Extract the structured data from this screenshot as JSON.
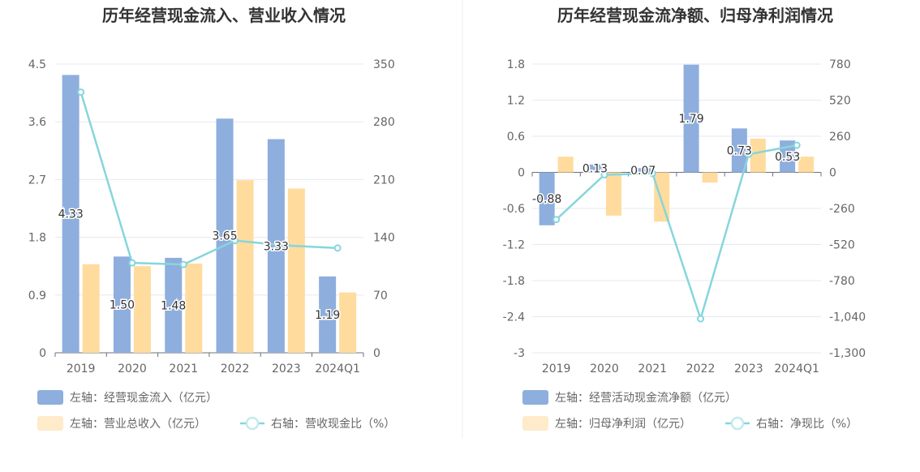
{
  "chart_data": [
    {
      "type": "bar",
      "title": "历年经营现金流入、营业收入情况",
      "categories": [
        "2019",
        "2020",
        "2021",
        "2022",
        "2023",
        "2024Q1"
      ],
      "left_axis": {
        "ylim": [
          0,
          4.5
        ],
        "ticks": [
          "0",
          "0.9",
          "1.8",
          "2.7",
          "3.6",
          "4.5"
        ],
        "tick_values": [
          0,
          0.9,
          1.8,
          2.7,
          3.6,
          4.5
        ]
      },
      "right_axis": {
        "ylim": [
          0,
          350
        ],
        "ticks": [
          "0",
          "70",
          "140",
          "210",
          "280",
          "350"
        ],
        "tick_values": [
          0,
          70,
          140,
          210,
          280,
          350
        ]
      },
      "series": [
        {
          "name": "左轴：经营现金流入（亿元）",
          "type": "bar",
          "axis": "left",
          "color": "#8eaedd",
          "values": [
            4.33,
            1.5,
            1.48,
            3.65,
            3.33,
            1.19
          ],
          "labels": [
            "4.33",
            "1.50",
            "1.48",
            "3.65",
            "3.33",
            "1.19"
          ]
        },
        {
          "name": "左轴：营业总收入（亿元）",
          "type": "bar",
          "axis": "left",
          "color": "#ffdb9e",
          "values": [
            1.38,
            1.35,
            1.39,
            2.69,
            2.56,
            0.94
          ]
        },
        {
          "name": "右轴：营收现金比（%）",
          "type": "line",
          "axis": "right",
          "color": "#86d6dc",
          "values": [
            316,
            109,
            107,
            136,
            130,
            127
          ]
        }
      ]
    },
    {
      "type": "bar",
      "title": "历年经营现金流净额、归母净利润情况",
      "categories": [
        "2019",
        "2020",
        "2021",
        "2022",
        "2023",
        "2024Q1"
      ],
      "left_axis": {
        "ylim": [
          -3,
          1.8
        ],
        "ticks": [
          "-3",
          "-2.4",
          "-1.8",
          "-1.2",
          "-0.6",
          "0",
          "0.6",
          "1.2",
          "1.8"
        ],
        "tick_values": [
          -3,
          -2.4,
          -1.8,
          -1.2,
          -0.6,
          0,
          0.6,
          1.2,
          1.8
        ]
      },
      "right_axis": {
        "ylim": [
          -1300,
          780
        ],
        "ticks": [
          "-1,300",
          "-1,040",
          "-780",
          "-520",
          "-260",
          "0",
          "260",
          "520",
          "780"
        ],
        "tick_values": [
          -1300,
          -1040,
          -780,
          -520,
          -260,
          0,
          260,
          520,
          780
        ]
      },
      "series": [
        {
          "name": "左轴：经营活动现金流净额（亿元）",
          "type": "bar",
          "axis": "left",
          "color": "#8eaedd",
          "values": [
            -0.88,
            0.13,
            0.07,
            1.79,
            0.73,
            0.53
          ],
          "labels": [
            "-0.88",
            "0.13",
            "0.07",
            "1.79",
            "0.73",
            "0.53"
          ]
        },
        {
          "name": "左轴：归母净利润（亿元）",
          "type": "bar",
          "axis": "left",
          "color": "#ffdb9e",
          "values": [
            0.26,
            -0.72,
            -0.82,
            -0.17,
            0.56,
            0.26
          ]
        },
        {
          "name": "右轴：净现比（%）",
          "type": "line",
          "axis": "right",
          "color": "#86d6dc",
          "values": [
            -340,
            -18,
            -8,
            -1055,
            130,
            195
          ]
        }
      ]
    }
  ]
}
